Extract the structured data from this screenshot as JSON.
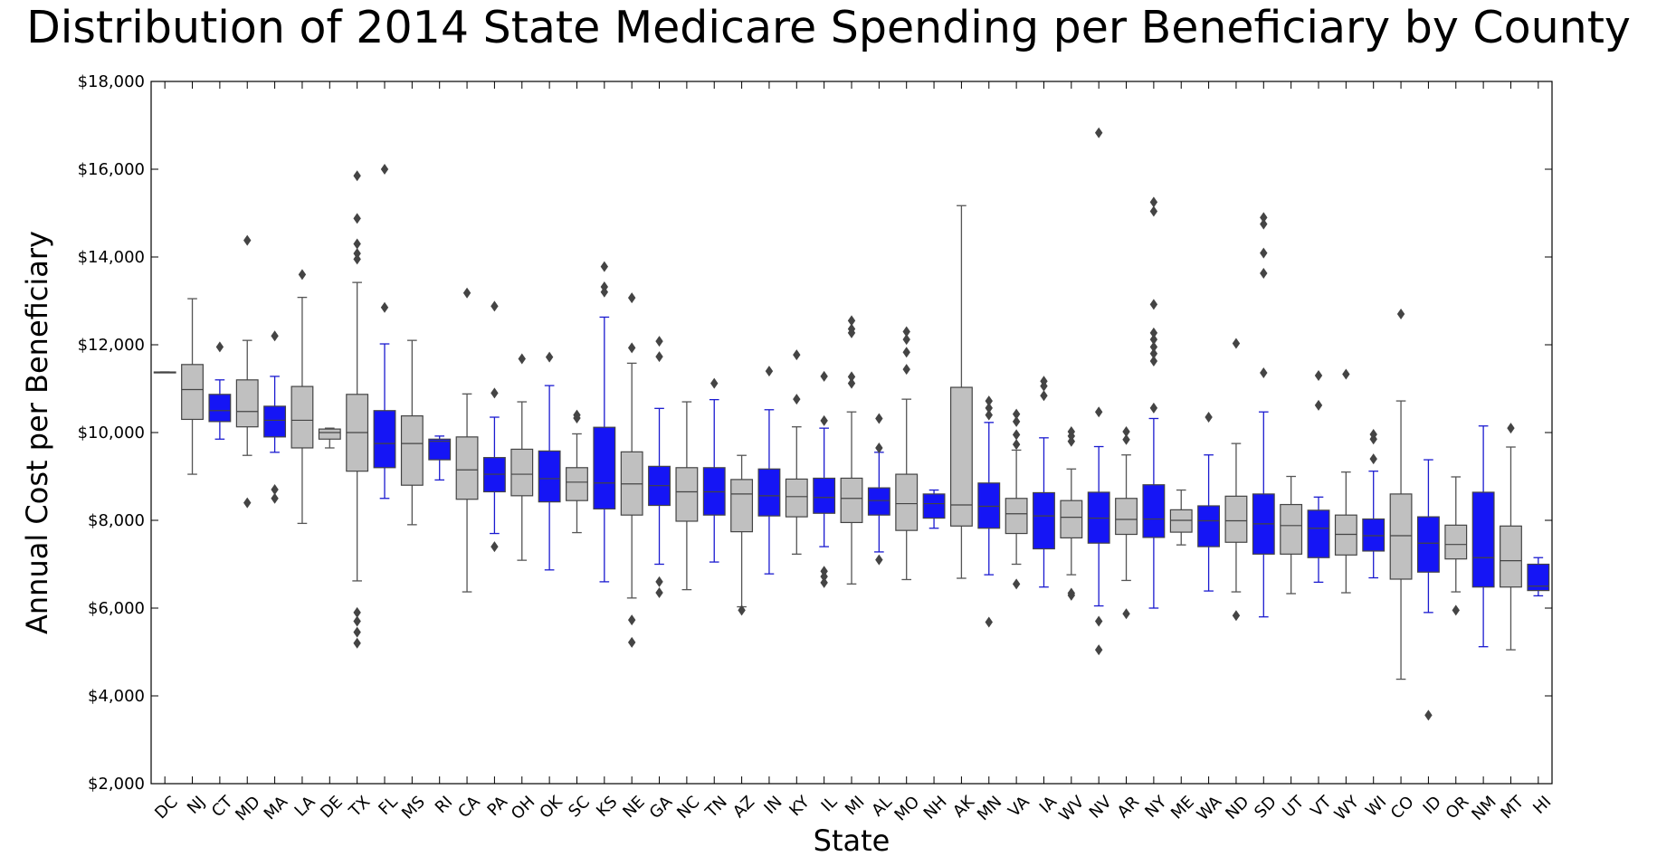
{
  "chart_data": {
    "type": "box",
    "title": "Distribution of 2014 State Medicare Spending per Beneficiary by County",
    "xlabel": "State",
    "ylabel": "Annual Cost per Beneficiary",
    "ylim": [
      2000,
      18000
    ],
    "yticks": [
      2000,
      4000,
      6000,
      8000,
      10000,
      12000,
      14000,
      16000,
      18000
    ],
    "ytick_labels": [
      "$2,000",
      "$4,000",
      "$6,000",
      "$8,000",
      "$10,000",
      "$12,000",
      "$14,000",
      "$16,000",
      "$18,000"
    ],
    "grid": false,
    "colors": {
      "gray": "#c0c0c0",
      "blue": "#1515f5",
      "gray_line": "#555555",
      "blue_line": "#1a1ad0"
    },
    "boxes": [
      {
        "state": "DC",
        "color": "gray",
        "q1": 11380,
        "median": 11380,
        "q3": 11380,
        "whislo": 11380,
        "whishi": 11380,
        "fliers": []
      },
      {
        "state": "NJ",
        "color": "gray",
        "q1": 10300,
        "median": 10980,
        "q3": 11550,
        "whislo": 9050,
        "whishi": 13050,
        "fliers": []
      },
      {
        "state": "CT",
        "color": "blue",
        "q1": 10250,
        "median": 10500,
        "q3": 10870,
        "whislo": 9850,
        "whishi": 11200,
        "fliers": [
          11950
        ]
      },
      {
        "state": "MD",
        "color": "gray",
        "q1": 10130,
        "median": 10480,
        "q3": 11200,
        "whislo": 9480,
        "whishi": 12100,
        "fliers": [
          8400,
          14380
        ]
      },
      {
        "state": "MA",
        "color": "blue",
        "q1": 9900,
        "median": 10280,
        "q3": 10600,
        "whislo": 9550,
        "whishi": 11280,
        "fliers": [
          8500,
          8700,
          12200
        ]
      },
      {
        "state": "LA",
        "color": "gray",
        "q1": 9650,
        "median": 10280,
        "q3": 11050,
        "whislo": 7930,
        "whishi": 13080,
        "fliers": [
          13600
        ]
      },
      {
        "state": "DE",
        "color": "gray",
        "q1": 9850,
        "median": 10000,
        "q3": 10080,
        "whislo": 9650,
        "whishi": 10100,
        "fliers": []
      },
      {
        "state": "TX",
        "color": "gray",
        "q1": 9120,
        "median": 10000,
        "q3": 10870,
        "whislo": 6620,
        "whishi": 13420,
        "fliers": [
          5200,
          5450,
          5700,
          5900,
          13950,
          14080,
          14300,
          14880,
          15850
        ]
      },
      {
        "state": "FL",
        "color": "blue",
        "q1": 9200,
        "median": 9750,
        "q3": 10500,
        "whislo": 8500,
        "whishi": 12020,
        "fliers": [
          12850,
          16000
        ]
      },
      {
        "state": "MS",
        "color": "gray",
        "q1": 8800,
        "median": 9750,
        "q3": 10380,
        "whislo": 7900,
        "whishi": 12100,
        "fliers": []
      },
      {
        "state": "RI",
        "color": "blue",
        "q1": 9380,
        "median": 9800,
        "q3": 9850,
        "whislo": 8920,
        "whishi": 9920,
        "fliers": []
      },
      {
        "state": "CA",
        "color": "gray",
        "q1": 8480,
        "median": 9150,
        "q3": 9900,
        "whislo": 6370,
        "whishi": 10880,
        "fliers": [
          13180
        ]
      },
      {
        "state": "PA",
        "color": "blue",
        "q1": 8650,
        "median": 9050,
        "q3": 9430,
        "whislo": 7700,
        "whishi": 10350,
        "fliers": [
          7400,
          10900,
          12880
        ]
      },
      {
        "state": "OH",
        "color": "gray",
        "q1": 8560,
        "median": 9050,
        "q3": 9620,
        "whislo": 7090,
        "whishi": 10700,
        "fliers": [
          11680
        ]
      },
      {
        "state": "OK",
        "color": "blue",
        "q1": 8420,
        "median": 8950,
        "q3": 9580,
        "whislo": 6870,
        "whishi": 11070,
        "fliers": [
          11720
        ]
      },
      {
        "state": "SC",
        "color": "gray",
        "q1": 8450,
        "median": 8870,
        "q3": 9200,
        "whislo": 7720,
        "whishi": 9970,
        "fliers": [
          10330,
          10400
        ]
      },
      {
        "state": "KS",
        "color": "blue",
        "q1": 8260,
        "median": 8850,
        "q3": 10120,
        "whislo": 6600,
        "whishi": 12630,
        "fliers": [
          13200,
          13320,
          13780
        ]
      },
      {
        "state": "NE",
        "color": "gray",
        "q1": 8120,
        "median": 8830,
        "q3": 9560,
        "whislo": 6230,
        "whishi": 11580,
        "fliers": [
          5220,
          5730,
          11930,
          13070
        ]
      },
      {
        "state": "GA",
        "color": "blue",
        "q1": 8340,
        "median": 8790,
        "q3": 9230,
        "whislo": 7000,
        "whishi": 10550,
        "fliers": [
          6350,
          6600,
          11730,
          12080
        ]
      },
      {
        "state": "NC",
        "color": "gray",
        "q1": 7980,
        "median": 8650,
        "q3": 9200,
        "whislo": 6420,
        "whishi": 10700,
        "fliers": []
      },
      {
        "state": "TN",
        "color": "blue",
        "q1": 8120,
        "median": 8650,
        "q3": 9200,
        "whislo": 7050,
        "whishi": 10750,
        "fliers": [
          11120
        ]
      },
      {
        "state": "AZ",
        "color": "gray",
        "q1": 7740,
        "median": 8600,
        "q3": 8930,
        "whislo": 6030,
        "whishi": 9480,
        "fliers": [
          5950
        ]
      },
      {
        "state": "IN",
        "color": "blue",
        "q1": 8100,
        "median": 8560,
        "q3": 9170,
        "whislo": 6780,
        "whishi": 10520,
        "fliers": [
          11400
        ]
      },
      {
        "state": "KY",
        "color": "gray",
        "q1": 8080,
        "median": 8540,
        "q3": 8940,
        "whislo": 7230,
        "whishi": 10130,
        "fliers": [
          10760,
          11770
        ]
      },
      {
        "state": "IL",
        "color": "blue",
        "q1": 8160,
        "median": 8520,
        "q3": 8960,
        "whislo": 7400,
        "whishi": 10100,
        "fliers": [
          6580,
          6720,
          6840,
          10270,
          11280
        ]
      },
      {
        "state": "MI",
        "color": "gray",
        "q1": 7950,
        "median": 8500,
        "q3": 8960,
        "whislo": 6550,
        "whishi": 10470,
        "fliers": [
          11120,
          11270,
          12270,
          12360,
          12550
        ]
      },
      {
        "state": "AL",
        "color": "blue",
        "q1": 8120,
        "median": 8450,
        "q3": 8740,
        "whislo": 7280,
        "whishi": 9550,
        "fliers": [
          7100,
          9650,
          10320
        ]
      },
      {
        "state": "MO",
        "color": "gray",
        "q1": 7770,
        "median": 8380,
        "q3": 9050,
        "whislo": 6650,
        "whishi": 10760,
        "fliers": [
          11440,
          11830,
          12120,
          12300
        ]
      },
      {
        "state": "NH",
        "color": "blue",
        "q1": 8050,
        "median": 8380,
        "q3": 8600,
        "whislo": 7820,
        "whishi": 8690,
        "fliers": []
      },
      {
        "state": "AK",
        "color": "gray",
        "q1": 7870,
        "median": 8350,
        "q3": 11030,
        "whislo": 6680,
        "whishi": 15170,
        "fliers": []
      },
      {
        "state": "MN",
        "color": "blue",
        "q1": 7820,
        "median": 8320,
        "q3": 8850,
        "whislo": 6760,
        "whishi": 10230,
        "fliers": [
          5680,
          10400,
          10560,
          10720
        ]
      },
      {
        "state": "VA",
        "color": "gray",
        "q1": 7700,
        "median": 8150,
        "q3": 8500,
        "whislo": 7000,
        "whishi": 9600,
        "fliers": [
          6550,
          9730,
          9950,
          10250,
          10420
        ]
      },
      {
        "state": "IA",
        "color": "blue",
        "q1": 7350,
        "median": 8100,
        "q3": 8630,
        "whislo": 6480,
        "whishi": 9880,
        "fliers": [
          10840,
          11060,
          11170
        ]
      },
      {
        "state": "WV",
        "color": "gray",
        "q1": 7600,
        "median": 8070,
        "q3": 8450,
        "whislo": 6760,
        "whishi": 9170,
        "fliers": [
          6290,
          6340,
          9800,
          9920,
          10020
        ]
      },
      {
        "state": "NV",
        "color": "blue",
        "q1": 7480,
        "median": 8050,
        "q3": 8640,
        "whislo": 6050,
        "whishi": 9680,
        "fliers": [
          5050,
          5700,
          10470,
          16830
        ]
      },
      {
        "state": "AR",
        "color": "gray",
        "q1": 7680,
        "median": 8020,
        "q3": 8500,
        "whislo": 6630,
        "whishi": 9490,
        "fliers": [
          5870,
          9840,
          10020
        ]
      },
      {
        "state": "NY",
        "color": "blue",
        "q1": 7610,
        "median": 8030,
        "q3": 8810,
        "whislo": 6000,
        "whishi": 10320,
        "fliers": [
          10560,
          11630,
          11800,
          11950,
          12120,
          12270,
          12920,
          15040,
          15250
        ]
      },
      {
        "state": "ME",
        "color": "gray",
        "q1": 7730,
        "median": 8000,
        "q3": 8240,
        "whislo": 7440,
        "whishi": 8690,
        "fliers": []
      },
      {
        "state": "WA",
        "color": "blue",
        "q1": 7400,
        "median": 7990,
        "q3": 8330,
        "whislo": 6390,
        "whishi": 9490,
        "fliers": [
          10350
        ]
      },
      {
        "state": "ND",
        "color": "gray",
        "q1": 7500,
        "median": 7990,
        "q3": 8550,
        "whislo": 6370,
        "whishi": 9750,
        "fliers": [
          5830,
          12030
        ]
      },
      {
        "state": "SD",
        "color": "blue",
        "q1": 7230,
        "median": 7920,
        "q3": 8600,
        "whislo": 5800,
        "whishi": 10470,
        "fliers": [
          11360,
          13630,
          14090,
          14750,
          14900
        ]
      },
      {
        "state": "UT",
        "color": "gray",
        "q1": 7230,
        "median": 7880,
        "q3": 8360,
        "whislo": 6330,
        "whishi": 9000,
        "fliers": []
      },
      {
        "state": "VT",
        "color": "blue",
        "q1": 7150,
        "median": 7820,
        "q3": 8230,
        "whislo": 6590,
        "whishi": 8530,
        "fliers": [
          10620,
          11300
        ]
      },
      {
        "state": "WY",
        "color": "gray",
        "q1": 7210,
        "median": 7680,
        "q3": 8120,
        "whislo": 6350,
        "whishi": 9100,
        "fliers": [
          11330
        ]
      },
      {
        "state": "WI",
        "color": "blue",
        "q1": 7300,
        "median": 7650,
        "q3": 8030,
        "whislo": 6690,
        "whishi": 9120,
        "fliers": [
          9400,
          9850,
          9960
        ]
      },
      {
        "state": "CO",
        "color": "gray",
        "q1": 6660,
        "median": 7650,
        "q3": 8600,
        "whislo": 4380,
        "whishi": 10720,
        "fliers": [
          12700
        ]
      },
      {
        "state": "ID",
        "color": "blue",
        "q1": 6820,
        "median": 7480,
        "q3": 8080,
        "whislo": 5900,
        "whishi": 9380,
        "fliers": [
          3560
        ]
      },
      {
        "state": "OR",
        "color": "gray",
        "q1": 7120,
        "median": 7450,
        "q3": 7890,
        "whislo": 6370,
        "whishi": 8990,
        "fliers": [
          5950
        ]
      },
      {
        "state": "NM",
        "color": "blue",
        "q1": 6480,
        "median": 7150,
        "q3": 8640,
        "whislo": 5120,
        "whishi": 10150,
        "fliers": []
      },
      {
        "state": "MT",
        "color": "gray",
        "q1": 6480,
        "median": 7080,
        "q3": 7870,
        "whislo": 5050,
        "whishi": 9670,
        "fliers": [
          10100
        ]
      },
      {
        "state": "HI",
        "color": "blue",
        "q1": 6400,
        "median": 6500,
        "q3": 7000,
        "whislo": 6280,
        "whishi": 7150,
        "fliers": []
      }
    ]
  }
}
